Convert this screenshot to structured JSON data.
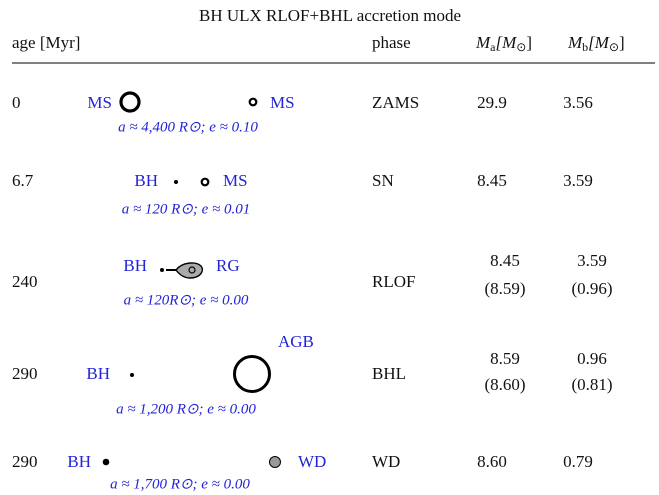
{
  "title": "BH ULX RLOF+BHL accretion mode",
  "header": {
    "age": "age [Myr]",
    "phase": "phase",
    "ma": [
      "M",
      "a",
      "[M",
      "⊙",
      "]"
    ],
    "mb": [
      "M",
      "b",
      "[M",
      "⊙",
      "]"
    ]
  },
  "rows": [
    {
      "age": "0",
      "left": "MS",
      "right": "MS",
      "orbit": "a ≈ 4,400 R⊙; e ≈ 0.10",
      "phase": "ZAMS",
      "ma": [
        "29.9"
      ],
      "mb": [
        "3.56"
      ]
    },
    {
      "age": "6.7",
      "left": "BH",
      "right": "MS",
      "orbit": "a ≈ 120 R⊙; e ≈ 0.01",
      "phase": "SN",
      "ma": [
        "8.45"
      ],
      "mb": [
        "3.59"
      ]
    },
    {
      "age": "240",
      "left": "BH",
      "right": "RG",
      "orbit": "a ≈ 120R⊙; e ≈ 0.00",
      "phase": "RLOF",
      "ma": [
        "8.45",
        "(8.59)"
      ],
      "mb": [
        "3.59",
        "(0.96)"
      ]
    },
    {
      "age": "290",
      "left": "BH",
      "right": "AGB",
      "orbit": "a ≈ 1,200 R⊙; e ≈ 0.00",
      "phase": "BHL",
      "ma": [
        "8.59",
        "(8.60)"
      ],
      "mb": [
        "0.96",
        "(0.81)"
      ]
    },
    {
      "age": "290",
      "left": "BH",
      "right": "WD",
      "orbit": "a ≈ 1,700 R⊙; e ≈ 0.00",
      "phase": "WD",
      "ma": [
        "8.60"
      ],
      "mb": [
        "0.79"
      ]
    }
  ]
}
